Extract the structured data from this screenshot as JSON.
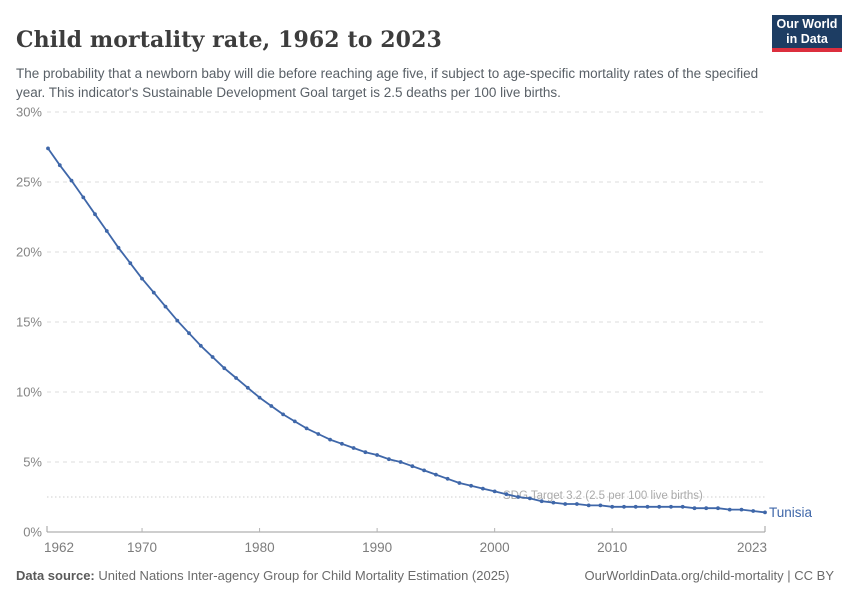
{
  "header": {
    "title": "Child mortality rate, 1962 to 2023",
    "subtitle": "The probability that a newborn baby will die before reaching age five, if subject to age-specific mortality rates of the specified year. This indicator's Sustainable Development Goal target is 2.5 deaths per 100 live births.",
    "logo": {
      "line1": "Our World",
      "line2": "in Data",
      "bg_color": "#1d3d63",
      "accent_color": "#dc2f3e"
    }
  },
  "chart_data": {
    "type": "line",
    "title": "Child mortality rate, 1962 to 2023",
    "xlabel": "",
    "ylabel": "",
    "xlim": [
      1962,
      2023
    ],
    "ylim": [
      0,
      30
    ],
    "grid": "horizontal-dashed",
    "legend_position": "end-of-line-label",
    "y_ticks": [
      0,
      5,
      10,
      15,
      20,
      25,
      30
    ],
    "y_tick_labels": [
      "0%",
      "5%",
      "10%",
      "15%",
      "20%",
      "25%",
      "30%"
    ],
    "x_ticks": [
      1962,
      1970,
      1980,
      1990,
      2000,
      2010,
      2023
    ],
    "x_tick_labels": [
      "1962",
      "1970",
      "1980",
      "1990",
      "2000",
      "2010",
      "2023"
    ],
    "annotation": {
      "label": "SDG Target 3.2 (2.5 per 100 live births)",
      "value": 2.5
    },
    "series": [
      {
        "name": "Tunisia",
        "color": "#3f67a9",
        "years": [
          1962,
          1963,
          1964,
          1965,
          1966,
          1967,
          1968,
          1969,
          1970,
          1971,
          1972,
          1973,
          1974,
          1975,
          1976,
          1977,
          1978,
          1979,
          1980,
          1981,
          1982,
          1983,
          1984,
          1985,
          1986,
          1987,
          1988,
          1989,
          1990,
          1991,
          1992,
          1993,
          1994,
          1995,
          1996,
          1997,
          1998,
          1999,
          2000,
          2001,
          2002,
          2003,
          2004,
          2005,
          2006,
          2007,
          2008,
          2009,
          2010,
          2011,
          2012,
          2013,
          2014,
          2015,
          2016,
          2017,
          2018,
          2019,
          2020,
          2021,
          2022,
          2023
        ],
        "values": [
          27.4,
          26.2,
          25.1,
          23.9,
          22.7,
          21.5,
          20.3,
          19.2,
          18.1,
          17.1,
          16.1,
          15.1,
          14.2,
          13.3,
          12.5,
          11.7,
          11.0,
          10.3,
          9.6,
          9.0,
          8.4,
          7.9,
          7.4,
          7.0,
          6.6,
          6.3,
          6.0,
          5.7,
          5.5,
          5.2,
          5.0,
          4.7,
          4.4,
          4.1,
          3.8,
          3.5,
          3.3,
          3.1,
          2.9,
          2.7,
          2.5,
          2.4,
          2.2,
          2.1,
          2.0,
          2.0,
          1.9,
          1.9,
          1.8,
          1.8,
          1.8,
          1.8,
          1.8,
          1.8,
          1.8,
          1.7,
          1.7,
          1.7,
          1.6,
          1.6,
          1.5,
          1.4
        ]
      }
    ]
  },
  "footer": {
    "datasource_label": "Data source:",
    "datasource_text": " United Nations Inter-agency Group for Child Mortality Estimation (2025)",
    "link_text": "OurWorldinData.org/child-mortality | CC BY"
  }
}
